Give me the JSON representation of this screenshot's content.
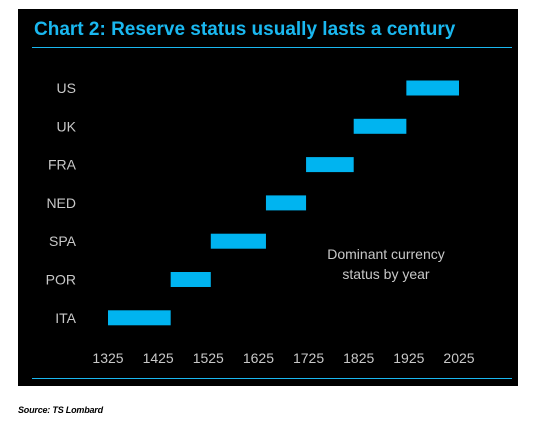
{
  "title": "Chart 2: Reserve status usually lasts a century",
  "source": "Source: TS Lombard",
  "colors": {
    "background": "#000000",
    "accent": "#1ab8f0",
    "bar": "#00b4f0",
    "text": "#c8c8c8"
  },
  "chart_data": {
    "type": "bar",
    "orientation": "horizontal-range",
    "categories": [
      "US",
      "UK",
      "FRA",
      "NED",
      "SPA",
      "POR",
      "ITA"
    ],
    "ranges": [
      {
        "country": "US",
        "start": 1920,
        "end": 2025
      },
      {
        "country": "UK",
        "start": 1815,
        "end": 1920
      },
      {
        "country": "FRA",
        "start": 1720,
        "end": 1815
      },
      {
        "country": "NED",
        "start": 1640,
        "end": 1720
      },
      {
        "country": "SPA",
        "start": 1530,
        "end": 1640
      },
      {
        "country": "POR",
        "start": 1450,
        "end": 1530
      },
      {
        "country": "ITA",
        "start": 1325,
        "end": 1450
      }
    ],
    "xlim": [
      1325,
      2025
    ],
    "xticks": [
      1325,
      1425,
      1525,
      1625,
      1725,
      1825,
      1925,
      2025
    ],
    "annotation": [
      "Dominant currency",
      "status by year"
    ],
    "grid": false,
    "legend": "none"
  }
}
